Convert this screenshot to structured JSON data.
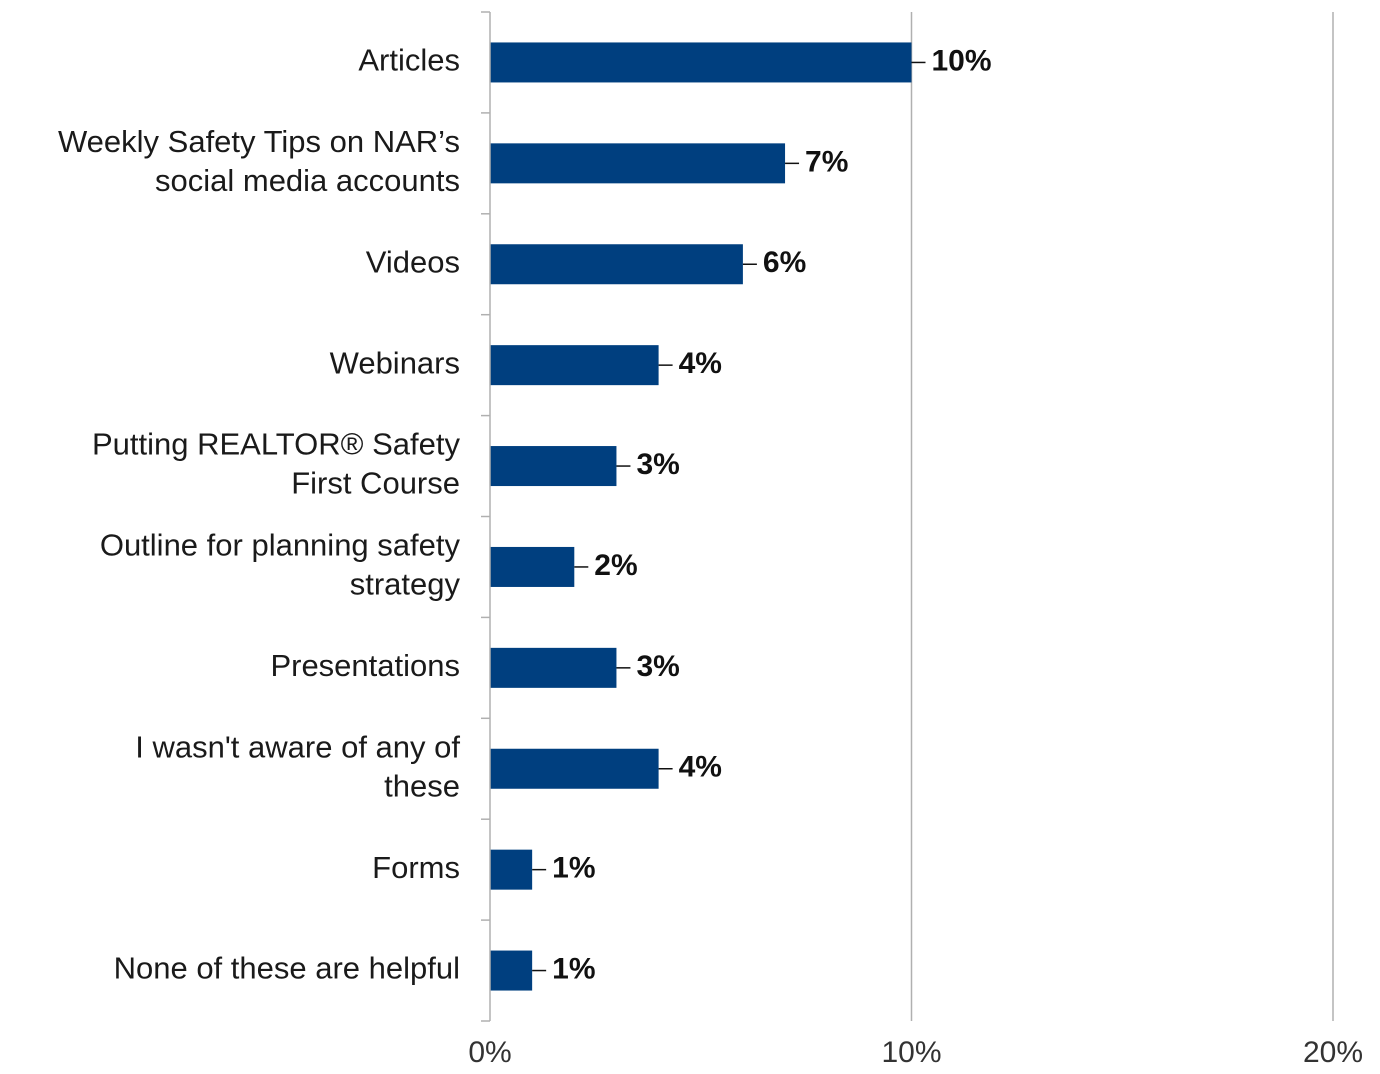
{
  "chart_data": {
    "type": "bar",
    "orientation": "horizontal",
    "title": "",
    "xlabel": "",
    "ylabel": "",
    "categories": [
      [
        "Articles"
      ],
      [
        "Weekly Safety Tips on NAR’s",
        "social media accounts"
      ],
      [
        "Videos"
      ],
      [
        "Webinars"
      ],
      [
        "Putting REALTOR® Safety",
        "First Course"
      ],
      [
        "Outline for planning safety",
        "strategy"
      ],
      [
        "Presentations"
      ],
      [
        "I wasn't aware of any of",
        "these"
      ],
      [
        "Forms"
      ],
      [
        "None of these are helpful"
      ]
    ],
    "values": [
      10,
      7,
      6,
      4,
      3,
      2,
      3,
      4,
      1,
      1
    ],
    "data_labels": [
      "10%",
      "7%",
      "6%",
      "4%",
      "3%",
      "2%",
      "3%",
      "4%",
      "1%",
      "1%"
    ],
    "xlim": [
      0,
      20
    ],
    "x_ticks": [
      0,
      10,
      20
    ],
    "x_tick_labels": [
      "0%",
      "10%",
      "20%"
    ],
    "grid": true,
    "legend": "none",
    "bar_color": "#003f7f",
    "grid_color": "#b0b0b0"
  }
}
